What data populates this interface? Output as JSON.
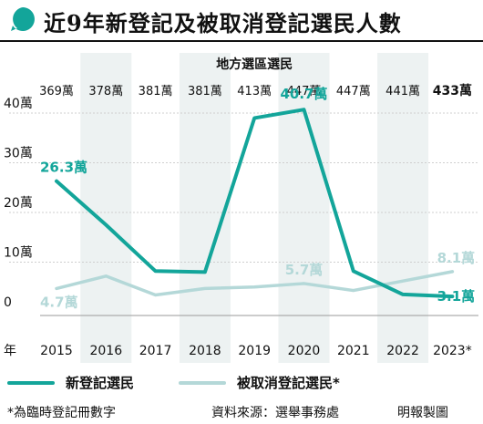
{
  "header": {
    "title": "近9年新登記及被取消登記選民人數"
  },
  "chart_data": {
    "type": "line",
    "categories": [
      "2015",
      "2016",
      "2017",
      "2018",
      "2019",
      "2020",
      "2021",
      "2022",
      "2023*"
    ],
    "x_axis_prefix": "年",
    "y_axis": {
      "ticks": [
        0,
        10,
        20,
        30,
        40
      ],
      "tick_labels": [
        "0",
        "10萬",
        "20萬",
        "30萬",
        "40萬"
      ],
      "ylim": [
        0,
        45
      ]
    },
    "district_voters": {
      "title": "地方選區選民",
      "values": [
        "369萬",
        "378萬",
        "381萬",
        "381萬",
        "413萬",
        "447萬",
        "447萬",
        "441萬",
        "433萬"
      ]
    },
    "series": [
      {
        "name": "新登記選民",
        "color": "#13a59a",
        "values": [
          26.3,
          17.5,
          8.2,
          8.0,
          39.0,
          40.7,
          8.2,
          3.5,
          3.1
        ],
        "labels": [
          {
            "index": 0,
            "text": "26.3萬"
          },
          {
            "index": 5,
            "text": "40.7萬"
          },
          {
            "index": 8,
            "text": "3.1萬"
          }
        ]
      },
      {
        "name": "被取消登記選民*",
        "color": "#b4d8d8",
        "values": [
          4.7,
          7.2,
          3.4,
          4.7,
          5.0,
          5.7,
          4.3,
          6.2,
          8.1
        ],
        "labels": [
          {
            "index": 0,
            "text": "4.7萬"
          },
          {
            "index": 5,
            "text": "5.7萬"
          },
          {
            "index": 8,
            "text": "8.1萬"
          }
        ]
      }
    ],
    "shaded_columns": [
      "2016",
      "2018",
      "2020",
      "2022"
    ],
    "grid": true
  },
  "footer": {
    "note": "*為臨時登記冊數字",
    "source": "資料來源：選舉事務處",
    "credit": "明報製圖"
  },
  "colors": {
    "accent": "#13a59a",
    "secondary": "#b4d8d8",
    "band": "#edf2f2",
    "grid": "#cfcfcf"
  }
}
